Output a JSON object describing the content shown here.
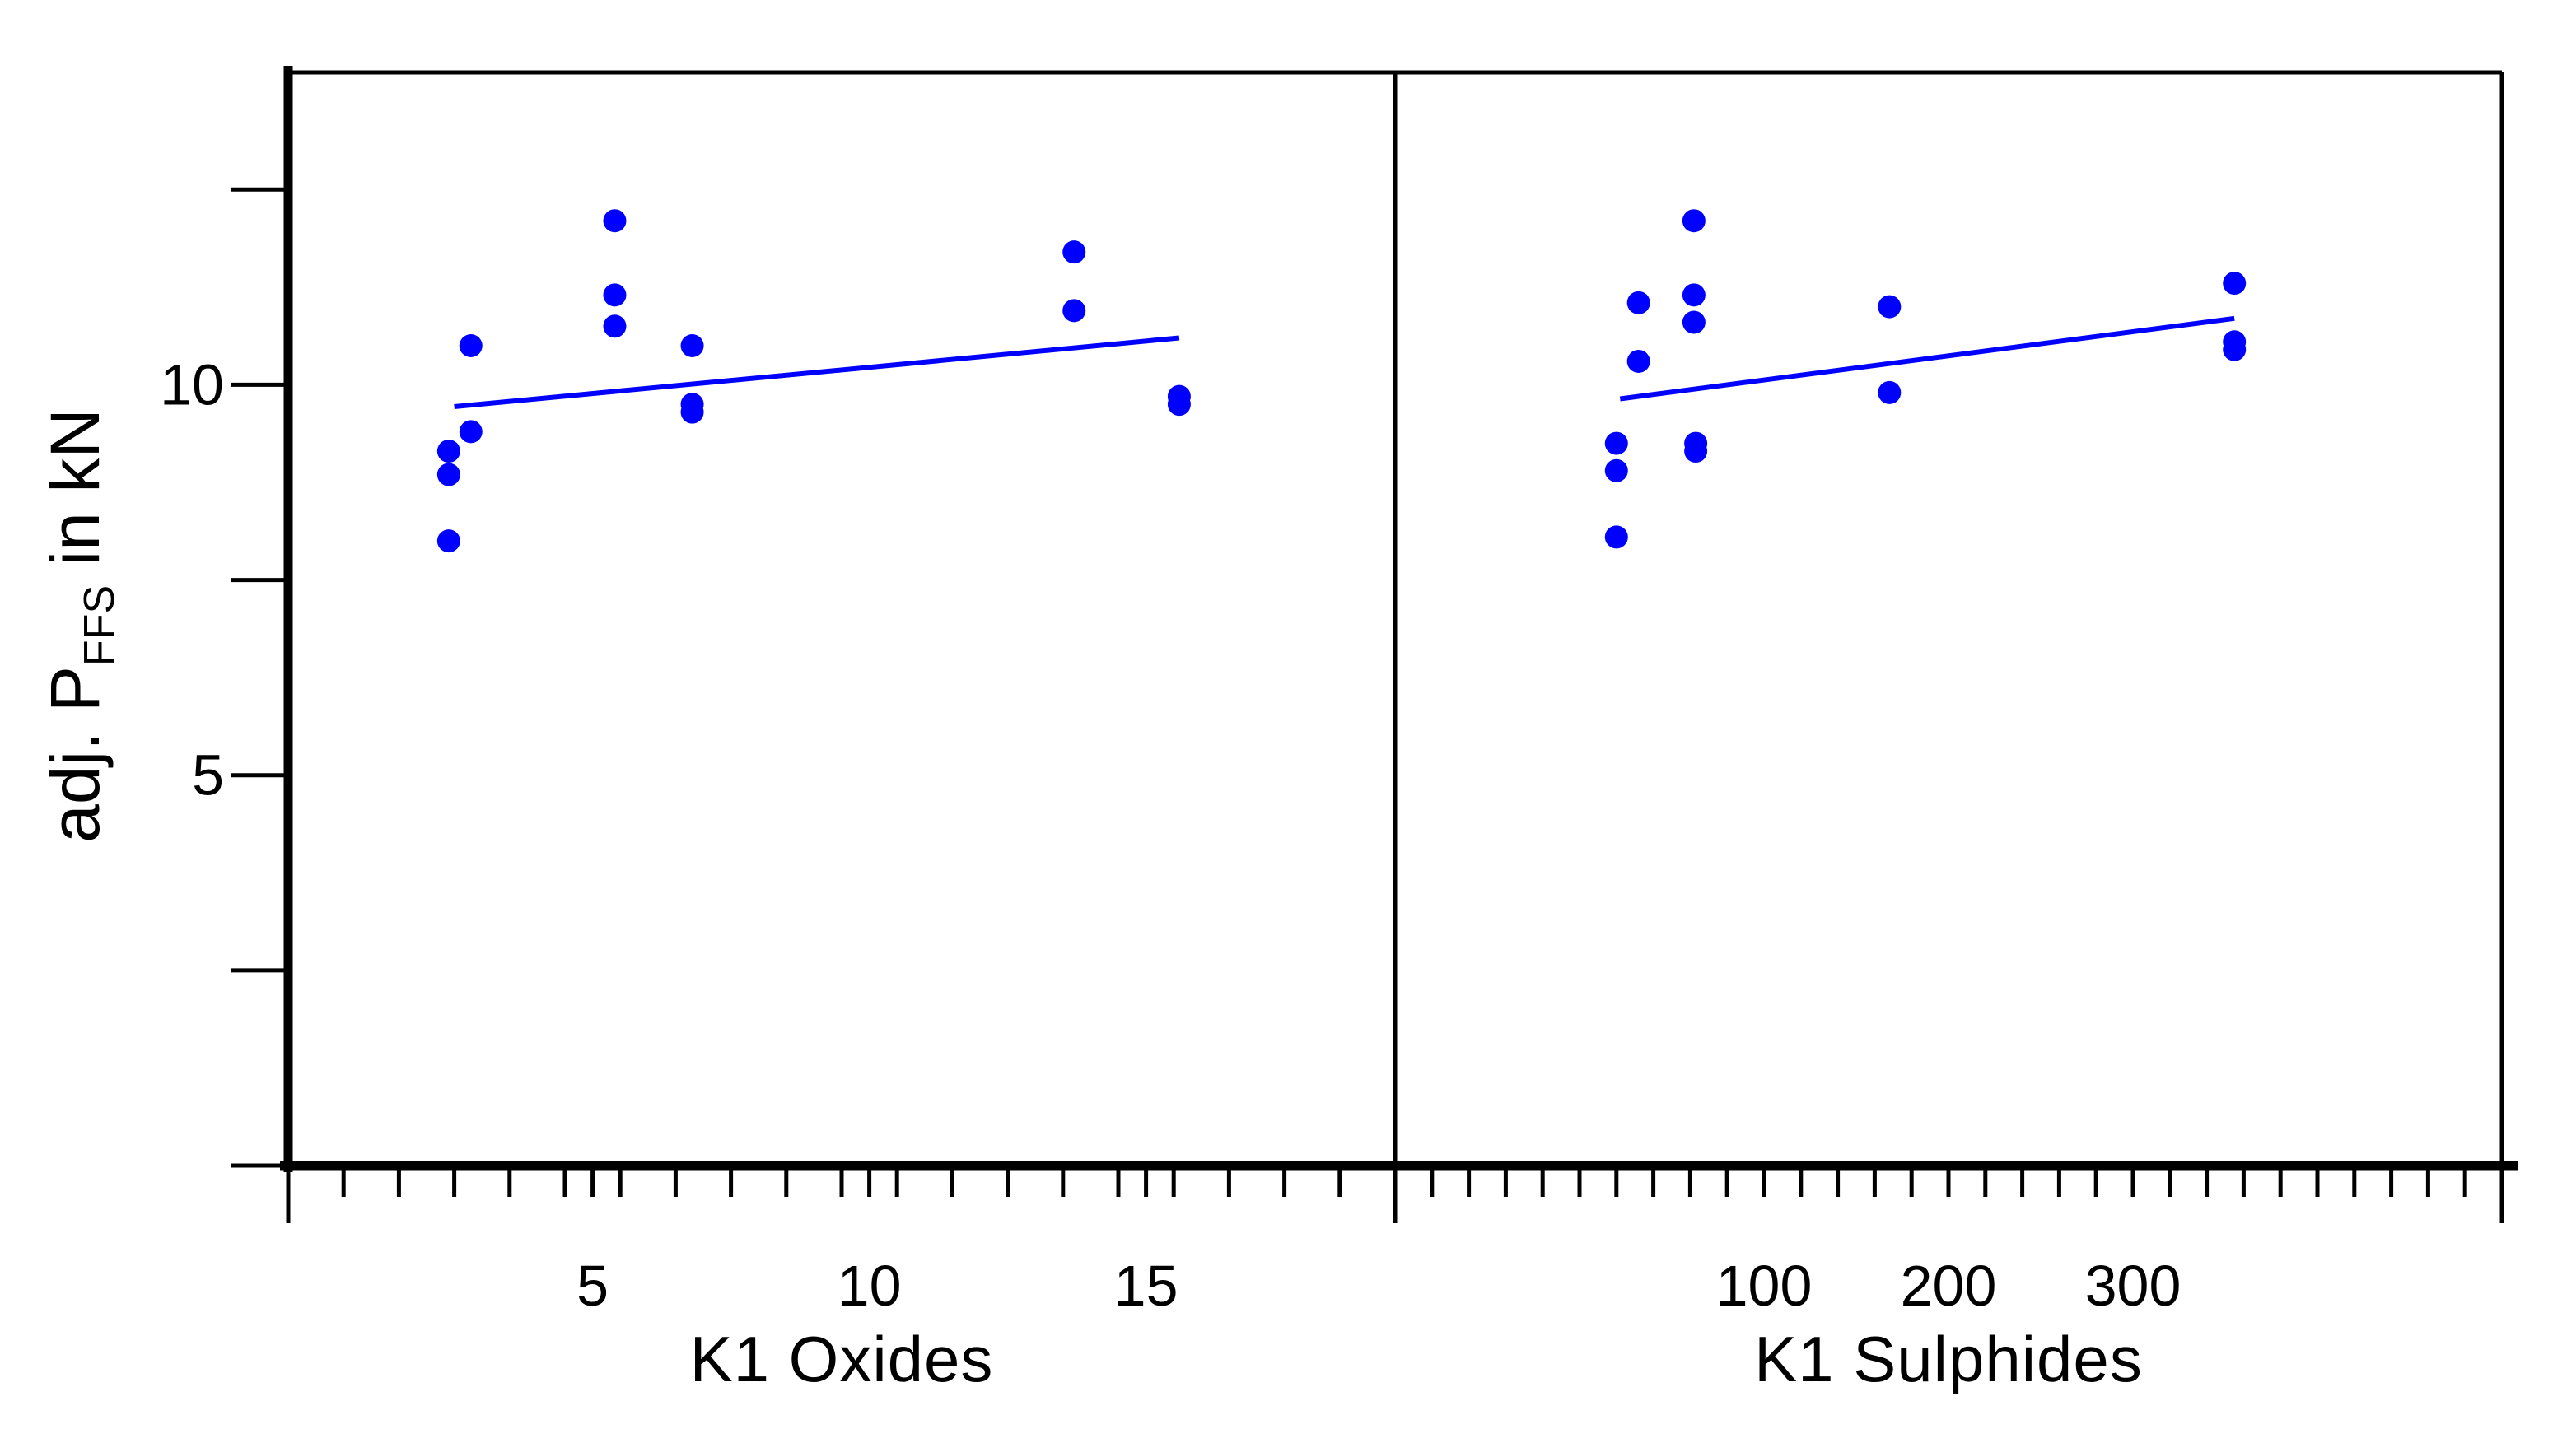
{
  "chart_data": {
    "type": "scatter",
    "y_axis": {
      "label_main": "adj. P",
      "label_sub": "FFS",
      "label_tail": " in kN",
      "range": [
        0,
        14
      ],
      "major_ticks": [
        0,
        2.5,
        5,
        7.5,
        10,
        12.5
      ],
      "tick_labels": [
        {
          "value": 5,
          "text": "5"
        },
        {
          "value": 10,
          "text": "10"
        }
      ]
    },
    "panels": [
      {
        "id": "oxides",
        "xlabel": "K1 Oxides",
        "xlim": [
          -0.5,
          19.5
        ],
        "minor_ticks": [
          0.5,
          1.5,
          2.5,
          3.5,
          4.5,
          5.5,
          6.5,
          7.5,
          8.5,
          9.5,
          10.5,
          11.5,
          12.5,
          13.5,
          14.5,
          15.5,
          16.5,
          17.5,
          18.5
        ],
        "major_ticks": [
          -0.5,
          19.5
        ],
        "tick_labels": [
          {
            "value": 5,
            "text": "5"
          },
          {
            "value": 10,
            "text": "10"
          },
          {
            "value": 15,
            "text": "15"
          }
        ],
        "points": [
          [
            2.4,
            9.15
          ],
          [
            2.4,
            8.85
          ],
          [
            2.4,
            8.0
          ],
          [
            2.8,
            10.5
          ],
          [
            2.8,
            9.4
          ],
          [
            5.4,
            12.1
          ],
          [
            5.4,
            11.15
          ],
          [
            5.4,
            10.75
          ],
          [
            6.8,
            10.5
          ],
          [
            6.8,
            9.75
          ],
          [
            6.8,
            9.65
          ],
          [
            13.7,
            11.7
          ],
          [
            13.7,
            10.95
          ],
          [
            15.6,
            9.85
          ],
          [
            15.6,
            9.75
          ]
        ],
        "fit": [
          [
            2.5,
            9.72
          ],
          [
            15.6,
            10.6
          ]
        ]
      },
      {
        "id": "sulphides",
        "xlabel": "K1 Sulphides",
        "xlim": [
          -100,
          500
        ],
        "minor_ticks": [
          -80,
          -60,
          -40,
          -20,
          0,
          20,
          40,
          60,
          80,
          100,
          120,
          140,
          160,
          180,
          200,
          220,
          240,
          260,
          280,
          300,
          320,
          340,
          360,
          380,
          400,
          420,
          440,
          460,
          480
        ],
        "major_ticks": [
          -100,
          500
        ],
        "tick_labels": [
          {
            "value": 100,
            "text": "100"
          },
          {
            "value": 200,
            "text": "200"
          },
          {
            "value": 300,
            "text": "300"
          }
        ],
        "points": [
          [
            20,
            9.25
          ],
          [
            20,
            8.9
          ],
          [
            20,
            8.05
          ],
          [
            32,
            11.05
          ],
          [
            32,
            10.3
          ],
          [
            62,
            12.1
          ],
          [
            62,
            11.15
          ],
          [
            62,
            10.8
          ],
          [
            63,
            9.25
          ],
          [
            63,
            9.15
          ],
          [
            168,
            11.0
          ],
          [
            168,
            9.9
          ],
          [
            355,
            11.3
          ],
          [
            355,
            10.55
          ],
          [
            355,
            10.45
          ]
        ],
        "fit": [
          [
            22,
            9.82
          ],
          [
            355,
            10.85
          ]
        ]
      }
    ],
    "marker_color": "#0000ff",
    "line_color": "#0000ff",
    "grid": false,
    "legend": "none"
  }
}
